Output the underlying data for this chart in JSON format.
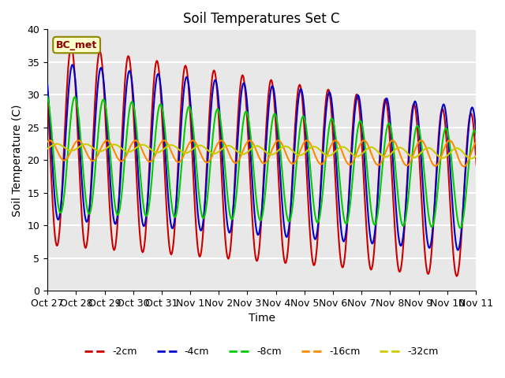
{
  "title": "Soil Temperatures Set C",
  "xlabel": "Time",
  "ylabel": "Soil Temperature (C)",
  "ylim": [
    0,
    40
  ],
  "xlim": [
    0,
    336
  ],
  "annotation": "BC_met",
  "xtick_labels": [
    "Oct 27",
    "Oct 28",
    "Oct 29",
    "Oct 30",
    "Oct 31",
    "Nov 1",
    "Nov 2",
    "Nov 3",
    "Nov 4",
    "Nov 5",
    "Nov 6",
    "Nov 7",
    "Nov 8",
    "Nov 9",
    "Nov 10",
    "Nov 11"
  ],
  "xtick_positions": [
    0,
    24,
    48,
    72,
    96,
    120,
    144,
    168,
    192,
    216,
    240,
    264,
    288,
    312,
    336,
    360
  ],
  "colors": {
    "-2cm": "#cc0000",
    "-4cm": "#0000cc",
    "-8cm": "#00cc00",
    "-16cm": "#ff8800",
    "-32cm": "#cccc00"
  },
  "legend_order": [
    "-2cm",
    "-4cm",
    "-8cm",
    "-16cm",
    "-32cm"
  ],
  "background_color": "#e8e8e8",
  "grid_color": "#ffffff",
  "fig_bg": "#ffffff"
}
